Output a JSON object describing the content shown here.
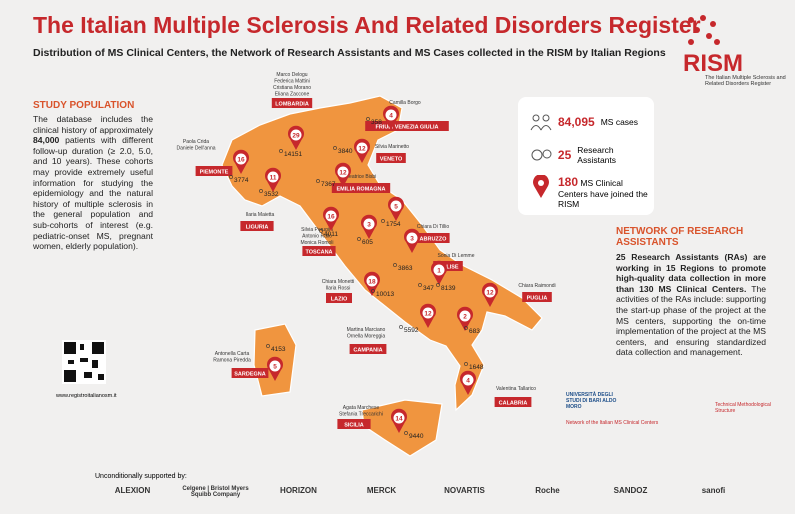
{
  "header": {
    "title": "The Italian Multiple Sclerosis And Related Disorders Register",
    "subtitle": "Distribution of MS Clinical Centers, the Network of Research Assistants and MS Cases collected in the RISM by Italian Regions"
  },
  "logo": {
    "name": "RISM",
    "tagline": "The Italian Multiple Sclerosis and Related Disorders Register"
  },
  "study_population": {
    "heading": "STUDY POPULATION",
    "before": "The database includes the clinical history of approximately ",
    "bold": "84,000",
    "after": " patients with different follow-up duration (≥ 2.0, 5.0, and 10 years). These cohorts may provide extremely useful information for studying the epidemiology and the natural history of multiple sclerosis in the general population and sub-cohorts of interest (e.g. pediatric-onset MS, pregnant women, elderly population)."
  },
  "stats": [
    {
      "value": "84,095",
      "label": "MS cases"
    },
    {
      "value": "25",
      "label": "Research Assistants"
    },
    {
      "value": "180",
      "label": "MS Clinical Centers have joined the RISM"
    }
  ],
  "network": {
    "heading": "NETWORK OF RESEARCH ASSISTANTS",
    "bold": "25 Research Assistants (RAs) are working in 15 Regions to promote high-quality data collection in more than 130 MS Clinical Centers.",
    "text": " The activities of the RAs include: supporting the start-up phase of the project at the MS centers, supporting the on-time implementation of the project at the MS centers, and ensuring standardized data collection and management."
  },
  "regions": [
    {
      "name": "LOMBARDIA",
      "assistants": [
        "Marco Delogu",
        "Federica Mattini",
        "Cristiana Morano",
        "Eliana Zaccone"
      ],
      "centers": 29,
      "cases": 14151
    },
    {
      "name": "FRIULI VENEZIA GIULIA",
      "assistants": [
        "Camilla Borgo"
      ],
      "centers": 4,
      "cases": 358
    },
    {
      "name": "VENETO",
      "assistants": [
        "Silvia Marinetto"
      ],
      "centers": 12,
      "cases": 3840
    },
    {
      "name": "PIEMONTE",
      "assistants": [
        "Paola Crida",
        "Daniele Dell'anna"
      ],
      "centers": 16,
      "cases": 3774
    },
    {
      "name": "LIGURIA",
      "assistants": [
        "Ilaria Maietta"
      ],
      "centers": 11,
      "cases": 3532
    },
    {
      "name": "EMILIA ROMAGNA",
      "assistants": [
        "Beatrice Bisbi"
      ],
      "centers": 12,
      "cases": 7367
    },
    {
      "name": "TOSCANA",
      "assistants": [
        "Silvia Perugini",
        "Antonio Rallo",
        "Monica Romoli"
      ],
      "centers": 16,
      "cases": 4011
    },
    {
      "centers": 5,
      "cases": 1754
    },
    {
      "centers": 3,
      "cases": 605
    },
    {
      "name": "ABRUZZO",
      "assistants": [
        "Chiara Di Tillio"
      ],
      "centers": 3,
      "cases": 3863
    },
    {
      "name": "MOLISE",
      "assistants": [
        "Sonia Di Lemme"
      ],
      "centers": 1,
      "cases": 347
    },
    {
      "name": "LAZIO",
      "assistants": [
        "Chiara Monetti",
        "Ilaria Rossi"
      ],
      "centers": 18,
      "cases": 10013
    },
    {
      "name": "CAMPANIA",
      "assistants": [
        "Martina Marciano",
        "Ornella Moreggia"
      ],
      "centers": 12,
      "cases": 5592
    },
    {
      "name": "PUGLIA",
      "assistants": [
        "Chiara Raimondi"
      ],
      "centers": 12,
      "cases": 8139
    },
    {
      "centers": 2,
      "cases": 683
    },
    {
      "name": "CALABRIA",
      "assistants": [
        "Valentina Tallarico"
      ],
      "centers": 4,
      "cases": 1648
    },
    {
      "name": "SICILIA",
      "assistants": [
        "Agata Marchese",
        "Stefania Treccarichi"
      ],
      "centers": 14,
      "cases": 9440
    },
    {
      "name": "SARDEGNA",
      "assistants": [
        "Antonella Carta",
        "Ramona Piredda"
      ],
      "centers": 5,
      "cases": 4153
    }
  ],
  "qr": {
    "url": "www.registroitalianosm.it"
  },
  "partners": {
    "university": "UNIVERSITÀ DEGLI STUDI DI BARI ALDO MORO",
    "network": "Network of the Italian MS Clinical Centers",
    "technical": "Technical Methodological Structure"
  },
  "supporters": {
    "label": "Unconditionally supported by:",
    "logos": [
      "ALEXION",
      "Celgene | Bristol Myers Squibb Company",
      "HORIZON",
      "MERCK",
      "NOVARTIS",
      "Roche",
      "SANDOZ",
      "sanofi"
    ]
  }
}
